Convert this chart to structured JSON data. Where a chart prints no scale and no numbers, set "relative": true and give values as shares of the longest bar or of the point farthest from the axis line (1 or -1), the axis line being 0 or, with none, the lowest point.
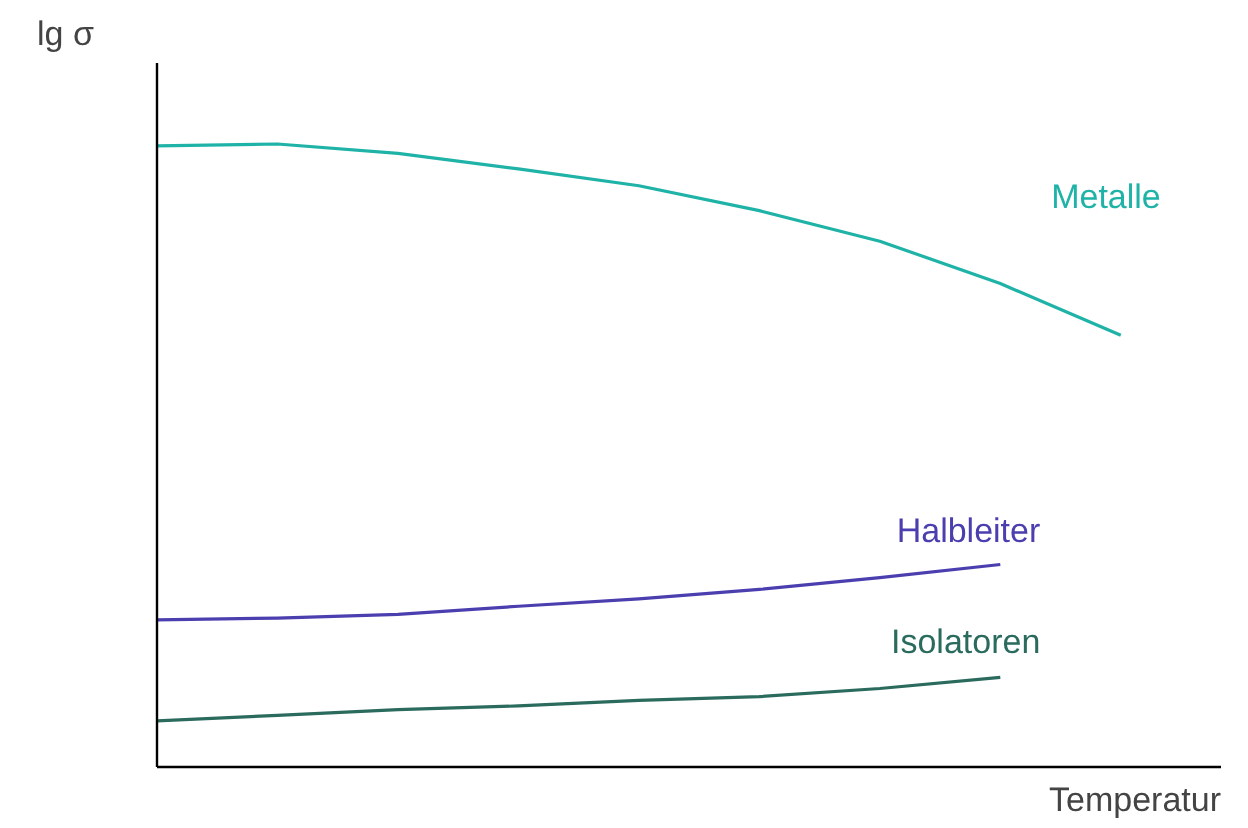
{
  "chart_data": {
    "type": "line",
    "relative": true,
    "xlabel": "Temperatur",
    "ylabel": "lg σ",
    "grid": false,
    "categories": [
      null,
      null,
      null,
      null,
      null,
      null,
      null,
      null,
      null
    ],
    "series": [
      {
        "name": "Metalle",
        "color": "#1fb3a8",
        "values": [
          0.997,
          1,
          0.985,
          0.96,
          0.933,
          0.893,
          0.844,
          0.776,
          0.693
        ]
      },
      {
        "name": "Halbleiter",
        "color": "#4b3fb0",
        "values": [
          0.236,
          0.239,
          0.245,
          0.258,
          0.27,
          0.285,
          0.304,
          0.325,
          null
        ]
      },
      {
        "name": "Isolatoren",
        "color": "#2a6b5e",
        "values": [
          0.074,
          0.083,
          0.092,
          0.098,
          0.107,
          0.113,
          0.126,
          0.144,
          null
        ]
      }
    ]
  }
}
